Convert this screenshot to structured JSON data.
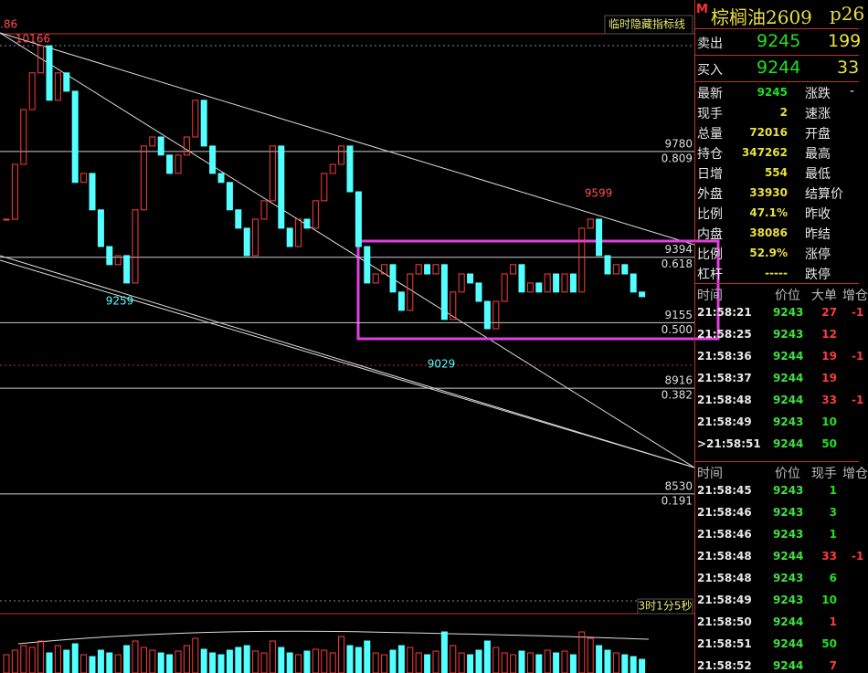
{
  "chart_data": {
    "type": "candlestick",
    "corner_label": "临时隐藏指标线",
    "timer_label": "3时1分5秒",
    "cut_label": ".86",
    "ylim": [
      8133,
      10333
    ],
    "closes": [
      9533,
      9733,
      9933,
      10067,
      10166,
      9967,
      10067,
      10000,
      9667,
      9700,
      9567,
      9433,
      9367,
      9400,
      9300,
      9567,
      9800,
      9833,
      9767,
      9700,
      9767,
      9833,
      9967,
      9800,
      9700,
      9667,
      9567,
      9500,
      9400,
      9533,
      9600,
      9800,
      9500,
      9433,
      9533,
      9500,
      9600,
      9700,
      9733,
      9800,
      9633,
      9433,
      9300,
      9333,
      9367,
      9267,
      9200,
      9333,
      9367,
      9333,
      9367,
      9167,
      9267,
      9333,
      9300,
      9233,
      9133,
      9233,
      9333,
      9367,
      9267,
      9300,
      9267,
      9333,
      9267,
      9333,
      9267,
      9500,
      9533,
      9400,
      9333,
      9367,
      9333,
      9267,
      9250
    ],
    "volumes": [
      20,
      25,
      30,
      28,
      35,
      22,
      30,
      25,
      32,
      20,
      18,
      25,
      22,
      20,
      30,
      35,
      28,
      25,
      22,
      20,
      24,
      30,
      38,
      26,
      22,
      20,
      25,
      28,
      30,
      24,
      22,
      35,
      28,
      22,
      20,
      24,
      26,
      25,
      22,
      40,
      30,
      28,
      35,
      22,
      20,
      25,
      30,
      28,
      22,
      20,
      24,
      45,
      30,
      22,
      20,
      25,
      35,
      28,
      22,
      20,
      24,
      22,
      20,
      25,
      22,
      24,
      20,
      45,
      38,
      30,
      25,
      22,
      20,
      18,
      15
    ],
    "up_color": "#ff3c3c",
    "down_color": "#54ffff",
    "levels": [
      {
        "price": 9780,
        "ratio": "0.809"
      },
      {
        "price": 9394,
        "ratio": "0.618"
      },
      {
        "price": 9155,
        "ratio": "0.500"
      },
      {
        "price": 8916,
        "ratio": "0.382"
      },
      {
        "price": 8530,
        "ratio": "0.191"
      }
    ],
    "annotations": [
      10166,
      9259,
      9029,
      9599
    ]
  },
  "quote": {
    "badge": "M",
    "title": "棕榈油2609",
    "code": "p26",
    "sell": {
      "label": "卖出",
      "price": 9245,
      "vol": "199"
    },
    "buy": {
      "label": "买入",
      "price": 9244,
      "vol": "33"
    },
    "stats": [
      [
        "最新",
        "9245",
        "涨跌",
        "-"
      ],
      [
        "现手",
        "2",
        "速涨",
        ""
      ],
      [
        "总量",
        "72016",
        "开盘",
        ""
      ],
      [
        "持仓",
        "347262",
        "最高",
        ""
      ],
      [
        "日增",
        "554",
        "最低",
        ""
      ],
      [
        "外盘",
        "33930",
        "结算价",
        ""
      ],
      [
        "比例",
        "47.1%",
        "昨收",
        ""
      ],
      [
        "内盘",
        "38086",
        "昨结",
        ""
      ],
      [
        "比例",
        "52.9%",
        "涨停",
        ""
      ],
      [
        "杠杆",
        "-----",
        "跌停",
        ""
      ]
    ]
  },
  "ticks_big": {
    "header": [
      "时间",
      "价位",
      "大单",
      "增仓"
    ],
    "rows": [
      [
        "21:58:21",
        "9243",
        "27",
        "-1"
      ],
      [
        "21:58:25",
        "9243",
        "12"
      ],
      [
        "21:58:36",
        "9244",
        "19",
        "-1"
      ],
      [
        "21:58:37",
        "9244",
        "19"
      ],
      [
        "21:58:48",
        "9244",
        "33",
        "-1"
      ],
      [
        "21:58:49",
        "9243",
        "10"
      ],
      [
        ">21:58:51",
        "9244",
        "50"
      ]
    ],
    "vol_colors": [
      "#ff3c3c",
      "#ff3c3c",
      "#ff3c3c",
      "#ff3c3c",
      "#ff3c3c",
      "#20e020",
      "#20e020"
    ]
  },
  "ticks_all": {
    "header": [
      "时间",
      "价位",
      "现手",
      "增仓"
    ],
    "rows": [
      [
        "21:58:45",
        "9243",
        "1"
      ],
      [
        "21:58:46",
        "9243",
        "3"
      ],
      [
        "21:58:46",
        "9243",
        "1"
      ],
      [
        "21:58:48",
        "9244",
        "33",
        "-1"
      ],
      [
        "21:58:48",
        "9243",
        "6"
      ],
      [
        "21:58:49",
        "9243",
        "10"
      ],
      [
        "21:58:50",
        "9244",
        "1"
      ],
      [
        "21:58:51",
        "9244",
        "50"
      ],
      [
        "21:58:52",
        "9244",
        "7"
      ]
    ],
    "vol_colors": [
      "#20e020",
      "#20e020",
      "#20e020",
      "#ff3c3c",
      "#20e020",
      "#20e020",
      "#ff3c3c",
      "#20e020",
      "#ff3c3c"
    ]
  }
}
